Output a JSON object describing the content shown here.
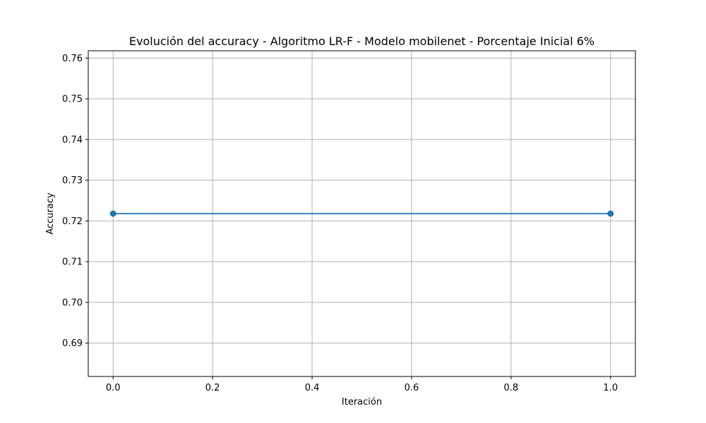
{
  "chart_data": {
    "type": "line",
    "title": "Evolución del accuracy - Algoritmo LR-F - Modelo mobilenet - Porcentaje Inicial 6%",
    "xlabel": "Iteración",
    "ylabel": "Accuracy",
    "x": [
      0,
      1
    ],
    "series": [
      {
        "values": [
          0.7218,
          0.7218
        ],
        "color": "#1f77b4",
        "marker": "circle"
      }
    ],
    "xlim": [
      -0.05,
      1.05
    ],
    "ylim": [
      0.6818,
      0.7618
    ],
    "xticks": [
      "0.0",
      "0.2",
      "0.4",
      "0.6",
      "0.8",
      "1.0"
    ],
    "yticks": [
      "0.69",
      "0.70",
      "0.71",
      "0.72",
      "0.73",
      "0.74",
      "0.75",
      "0.76"
    ],
    "grid": true,
    "legend": false
  },
  "colors": {
    "line": "#1f77b4",
    "grid": "#b0b0b0",
    "axis": "#000000"
  }
}
